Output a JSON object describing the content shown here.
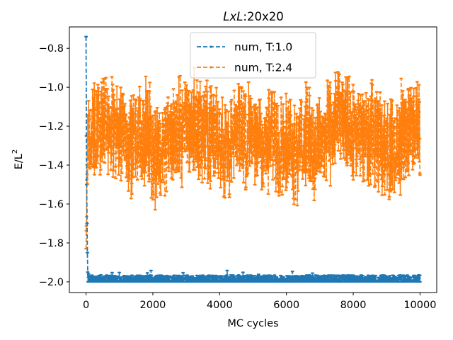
{
  "chart_data": {
    "type": "line",
    "title_italic": "LxL",
    "title_rest": ":20x20",
    "xlabel": "MC cycles",
    "ylabel_main": "E/L",
    "ylabel_sup": "2",
    "xlim": [
      -500,
      10500
    ],
    "ylim": [
      -2.055,
      -0.69
    ],
    "xticks": [
      0,
      2000,
      4000,
      6000,
      8000,
      10000
    ],
    "xtick_labels": [
      "0",
      "2000",
      "4000",
      "6000",
      "8000",
      "10000"
    ],
    "yticks": [
      -2.0,
      -1.8,
      -1.6,
      -1.4,
      -1.2,
      -1.0,
      -0.8
    ],
    "ytick_labels": [
      "−2.0",
      "−1.8",
      "−1.6",
      "−1.4",
      "−1.2",
      "−1.0",
      "−0.8"
    ],
    "grid": false,
    "legend_position": "top-center",
    "series": [
      {
        "name": "num, T:1.0",
        "color": "#1f77b4",
        "linestyle": "dashed",
        "marker": "dot",
        "initial": [
          [
            0,
            -0.74
          ],
          [
            10,
            -1.25
          ],
          [
            20,
            -1.5
          ],
          [
            30,
            -1.7
          ],
          [
            40,
            -1.85
          ],
          [
            50,
            -1.95
          ],
          [
            60,
            -2.0
          ]
        ],
        "baseline": -2.0,
        "fluct_min": -1.94,
        "fluct_typical": -1.975,
        "x_end": 10000,
        "points": 10000
      },
      {
        "name": "num, T:2.4",
        "color": "#ff7f0e",
        "linestyle": "dashed",
        "marker": "dot",
        "start": [
          0,
          -1.83
        ],
        "mean": -1.27,
        "low": -1.74,
        "high": -0.89,
        "x_end": 10000,
        "points": 10000
      }
    ]
  }
}
